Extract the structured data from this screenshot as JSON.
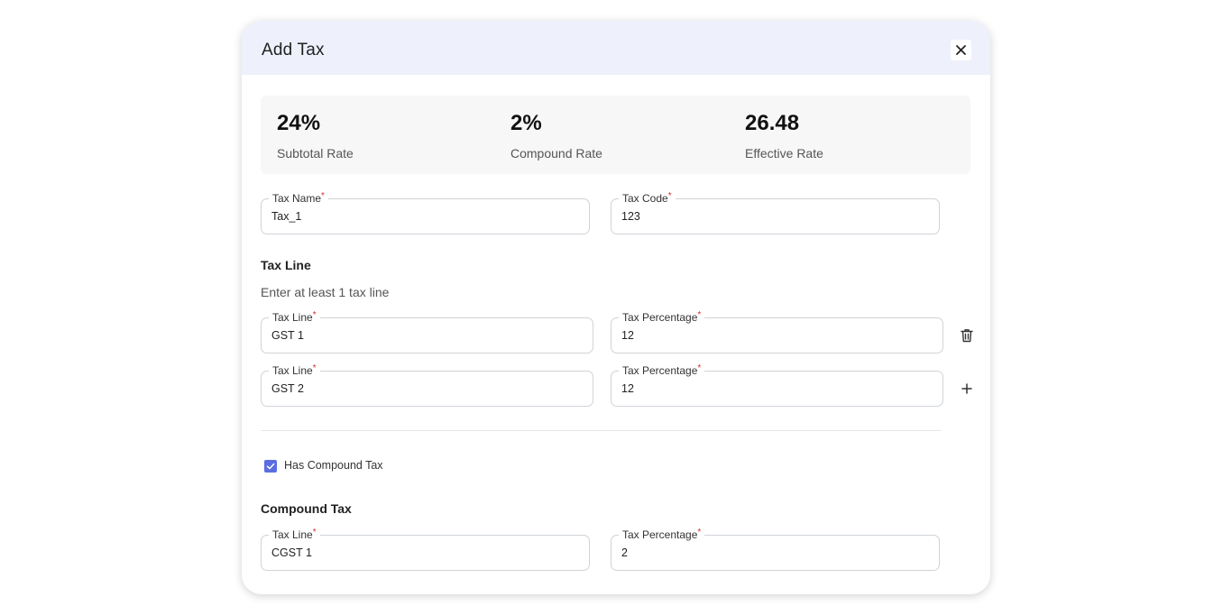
{
  "modal": {
    "title": "Add Tax",
    "close_icon": "close-icon"
  },
  "rates": [
    {
      "value": "24%",
      "label": "Subtotal Rate"
    },
    {
      "value": "2%",
      "label": "Compound Rate"
    },
    {
      "value": "26.48",
      "label": "Effective Rate"
    }
  ],
  "tax_name": {
    "label": "Tax Name",
    "value": "Tax_1"
  },
  "tax_code": {
    "label": "Tax Code",
    "value": "123"
  },
  "tax_line_section": {
    "title": "Tax Line",
    "helper": "Enter at least 1 tax line",
    "rows": [
      {
        "line_label": "Tax Line",
        "line_value": "GST 1",
        "pct_label": "Tax Percentage",
        "pct_value": "12",
        "action_icon": "trash-icon"
      },
      {
        "line_label": "Tax Line",
        "line_value": "GST 2",
        "pct_label": "Tax Percentage",
        "pct_value": "12",
        "action_icon": "plus-icon"
      }
    ]
  },
  "compound_checkbox": {
    "label": "Has Compound Tax",
    "checked": true
  },
  "compound_section": {
    "title": "Compound Tax",
    "line_label": "Tax Line",
    "line_value": "CGST 1",
    "pct_label": "Tax Percentage",
    "pct_value": "2"
  },
  "colors": {
    "header_bg": "#eef1fb",
    "accent": "#5b6ee1",
    "required": "#d32f2f"
  }
}
